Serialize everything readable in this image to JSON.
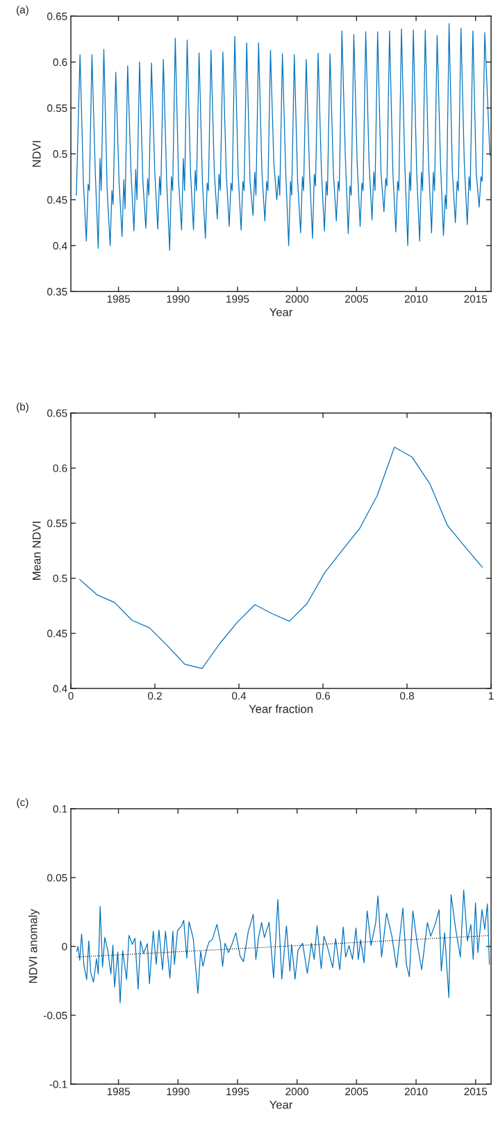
{
  "chart_data": [
    {
      "type": "line",
      "xlabel": "Year",
      "ylabel": "NDVI",
      "annotations": [
        "(a)"
      ],
      "xlim": [
        1981,
        2016.3
      ],
      "xticks": [
        1985,
        1990,
        1995,
        2000,
        2005,
        2010,
        2015
      ],
      "ylim": [
        0.35,
        0.65
      ],
      "yticks": [
        0.35,
        0.4,
        0.45,
        0.5,
        0.55,
        0.6,
        0.65
      ],
      "grid": false,
      "legend": false,
      "series": [
        {
          "color": "#0072bd",
          "line_style": "solid",
          "x": [
            1981.46,
            1981.77,
            1982.05,
            1982.3,
            1982.45,
            1982.55,
            1982.77,
            1983.05,
            1983.3,
            1983.45,
            1983.55,
            1983.77,
            1984.05,
            1984.3,
            1984.45,
            1984.55,
            1984.77,
            1985.05,
            1985.3,
            1985.45,
            1985.55,
            1985.77,
            1986.05,
            1986.3,
            1986.45,
            1986.55,
            1986.77,
            1987.05,
            1987.3,
            1987.45,
            1987.55,
            1987.77,
            1988.05,
            1988.3,
            1988.45,
            1988.55,
            1988.77,
            1989.05,
            1989.3,
            1989.45,
            1989.55,
            1989.77,
            1990.05,
            1990.3,
            1990.45,
            1990.55,
            1990.77,
            1991.05,
            1991.3,
            1991.45,
            1991.55,
            1991.77,
            1992.05,
            1992.3,
            1992.45,
            1992.55,
            1992.77,
            1993.05,
            1993.3,
            1993.45,
            1993.55,
            1993.77,
            1994.05,
            1994.3,
            1994.45,
            1994.55,
            1994.77,
            1995.05,
            1995.3,
            1995.45,
            1995.55,
            1995.77,
            1996.05,
            1996.3,
            1996.45,
            1996.55,
            1996.77,
            1997.05,
            1997.3,
            1997.45,
            1997.55,
            1997.77,
            1998.05,
            1998.3,
            1998.45,
            1998.55,
            1998.77,
            1999.05,
            1999.3,
            1999.45,
            1999.55,
            1999.77,
            2000.05,
            2000.3,
            2000.45,
            2000.55,
            2000.77,
            2001.05,
            2001.3,
            2001.45,
            2001.55,
            2001.77,
            2002.05,
            2002.3,
            2002.45,
            2002.55,
            2002.77,
            2003.05,
            2003.3,
            2003.45,
            2003.55,
            2003.77,
            2004.05,
            2004.3,
            2004.45,
            2004.55,
            2004.77,
            2005.05,
            2005.3,
            2005.45,
            2005.55,
            2005.77,
            2006.05,
            2006.3,
            2006.45,
            2006.55,
            2006.77,
            2007.05,
            2007.3,
            2007.45,
            2007.55,
            2007.77,
            2008.05,
            2008.3,
            2008.45,
            2008.55,
            2008.77,
            2009.05,
            2009.3,
            2009.45,
            2009.55,
            2009.77,
            2010.05,
            2010.3,
            2010.45,
            2010.55,
            2010.77,
            2011.05,
            2011.3,
            2011.45,
            2011.55,
            2011.77,
            2012.05,
            2012.3,
            2012.45,
            2012.55,
            2012.77,
            2013.05,
            2013.3,
            2013.45,
            2013.55,
            2013.77,
            2014.05,
            2014.3,
            2014.45,
            2014.55,
            2014.77,
            2015.05,
            2015.3,
            2015.45,
            2015.55,
            2015.77,
            2016.2
          ],
          "values": [
            0.455,
            0.608,
            0.47,
            0.405,
            0.467,
            0.46,
            0.608,
            0.48,
            0.397,
            0.495,
            0.46,
            0.614,
            0.46,
            0.4,
            0.46,
            0.445,
            0.589,
            0.47,
            0.41,
            0.472,
            0.44,
            0.596,
            0.48,
            0.416,
            0.483,
            0.45,
            0.6,
            0.47,
            0.419,
            0.473,
            0.455,
            0.599,
            0.48,
            0.418,
            0.475,
            0.455,
            0.603,
            0.47,
            0.395,
            0.475,
            0.46,
            0.626,
            0.47,
            0.417,
            0.495,
            0.46,
            0.624,
            0.48,
            0.417,
            0.482,
            0.46,
            0.61,
            0.47,
            0.408,
            0.468,
            0.46,
            0.613,
            0.48,
            0.429,
            0.478,
            0.46,
            0.611,
            0.48,
            0.421,
            0.468,
            0.46,
            0.628,
            0.48,
            0.417,
            0.47,
            0.46,
            0.621,
            0.47,
            0.433,
            0.48,
            0.455,
            0.621,
            0.48,
            0.427,
            0.47,
            0.46,
            0.613,
            0.49,
            0.45,
            0.476,
            0.455,
            0.609,
            0.48,
            0.4,
            0.47,
            0.455,
            0.608,
            0.47,
            0.414,
            0.475,
            0.46,
            0.603,
            0.48,
            0.408,
            0.478,
            0.465,
            0.61,
            0.48,
            0.416,
            0.47,
            0.455,
            0.609,
            0.48,
            0.427,
            0.47,
            0.46,
            0.634,
            0.5,
            0.413,
            0.465,
            0.455,
            0.63,
            0.49,
            0.421,
            0.468,
            0.46,
            0.633,
            0.49,
            0.428,
            0.48,
            0.46,
            0.633,
            0.48,
            0.437,
            0.473,
            0.465,
            0.634,
            0.48,
            0.415,
            0.47,
            0.46,
            0.636,
            0.49,
            0.4,
            0.48,
            0.46,
            0.635,
            0.48,
            0.405,
            0.48,
            0.46,
            0.635,
            0.49,
            0.414,
            0.48,
            0.46,
            0.629,
            0.49,
            0.411,
            0.455,
            0.44,
            0.642,
            0.48,
            0.425,
            0.47,
            0.46,
            0.637,
            0.49,
            0.423,
            0.475,
            0.46,
            0.634,
            0.48,
            0.442,
            0.475,
            0.47,
            0.632,
            0.498
          ]
        }
      ]
    },
    {
      "type": "line",
      "xlabel": "Year fraction",
      "ylabel": "Mean NDVI",
      "annotations": [
        "(b)"
      ],
      "xlim": [
        0,
        1
      ],
      "xticks": [
        0,
        0.2,
        0.4,
        0.6,
        0.8,
        1
      ],
      "ylim": [
        0.4,
        0.65
      ],
      "yticks": [
        0.4,
        0.45,
        0.5,
        0.55,
        0.6,
        0.65
      ],
      "grid": false,
      "legend": false,
      "series": [
        {
          "color": "#0072bd",
          "line_style": "solid",
          "x": [
            0.021,
            0.062,
            0.104,
            0.145,
            0.187,
            0.229,
            0.271,
            0.312,
            0.355,
            0.396,
            0.438,
            0.478,
            0.52,
            0.562,
            0.604,
            0.645,
            0.687,
            0.729,
            0.77,
            0.812,
            0.854,
            0.896,
            0.937,
            0.979
          ],
          "values": [
            0.499,
            0.485,
            0.478,
            0.462,
            0.455,
            0.439,
            0.422,
            0.418,
            0.441,
            0.46,
            0.476,
            0.468,
            0.461,
            0.477,
            0.505,
            0.525,
            0.545,
            0.575,
            0.619,
            0.61,
            0.586,
            0.548,
            0.529,
            0.51
          ]
        }
      ]
    },
    {
      "type": "line",
      "xlabel": "Year",
      "ylabel": "NDVI anomaly",
      "annotations": [
        "(c)"
      ],
      "xlim": [
        1981,
        2016.3
      ],
      "xticks": [
        1985,
        1990,
        1995,
        2000,
        2005,
        2010,
        2015
      ],
      "ylim": [
        -0.1,
        0.1
      ],
      "yticks": [
        -0.1,
        -0.05,
        0,
        0.05,
        0.1
      ],
      "grid": false,
      "legend": false,
      "series": [
        {
          "color": "#0072bd",
          "line_style": "solid",
          "x": [
            1981.5,
            1981.6,
            1981.75,
            1981.9,
            1982.1,
            1982.33,
            1982.5,
            1982.67,
            1982.9,
            1983.15,
            1983.3,
            1983.46,
            1983.66,
            1983.85,
            1984.1,
            1984.36,
            1984.53,
            1984.67,
            1984.94,
            1985.14,
            1985.35,
            1985.68,
            1985.88,
            1986.17,
            1986.38,
            1986.65,
            1986.85,
            1987.1,
            1987.43,
            1987.6,
            1987.92,
            1988.17,
            1988.4,
            1988.7,
            1988.95,
            1989.32,
            1989.57,
            1989.7,
            1989.96,
            1990.31,
            1990.48,
            1990.74,
            1990.93,
            1991.28,
            1991.67,
            1991.9,
            1992.1,
            1992.39,
            1992.59,
            1992.88,
            1993.27,
            1993.56,
            1993.75,
            1993.95,
            1994.24,
            1994.53,
            1994.86,
            1995.21,
            1995.5,
            1995.9,
            1996.32,
            1996.54,
            1996.77,
            1997.02,
            1997.26,
            1997.65,
            1998.03,
            1998.39,
            1998.72,
            1999.11,
            1999.4,
            1999.54,
            1999.83,
            2000.08,
            2000.47,
            2000.86,
            2001.21,
            2001.44,
            2001.68,
            2002.03,
            2002.26,
            2002.52,
            2003.0,
            2003.24,
            2003.59,
            2003.88,
            2004.08,
            2004.37,
            2004.66,
            2004.95,
            2005.15,
            2005.34,
            2005.63,
            2005.89,
            2006.22,
            2006.61,
            2006.8,
            2007.1,
            2007.52,
            2007.97,
            2008.36,
            2008.89,
            2009.18,
            2009.43,
            2009.73,
            2010.12,
            2010.47,
            2010.95,
            2011.23,
            2011.62,
            2011.93,
            2012.12,
            2012.4,
            2012.75,
            2012.94,
            2013.33,
            2013.72,
            2014.0,
            2014.31,
            2014.6,
            2014.8,
            2014.99,
            2015.19,
            2015.54,
            2015.77,
            2015.99,
            2016.16
          ],
          "values": [
            -0.0035,
            0.0,
            -0.01,
            0.009,
            -0.014,
            -0.024,
            0.004,
            -0.019,
            -0.026,
            -0.009,
            -0.02,
            0.029,
            -0.015,
            0.0065,
            -0.003,
            -0.02,
            0.001,
            -0.0295,
            -0.004,
            -0.041,
            -0.003,
            -0.024,
            0.008,
            0.0015,
            0.006,
            -0.031,
            0.004,
            -0.005,
            0.002,
            -0.027,
            0.011,
            -0.013,
            0.012,
            -0.017,
            0.011,
            -0.023,
            0.011,
            -0.013,
            0.0115,
            0.015,
            0.019,
            -0.0085,
            0.018,
            0.0057,
            -0.034,
            -0.0035,
            -0.0145,
            -0.0027,
            0.003,
            0.005,
            0.016,
            0.003,
            -0.0145,
            0.0023,
            -0.0044,
            0.0015,
            0.0099,
            -0.0069,
            -0.011,
            0.0107,
            0.0233,
            -0.0094,
            0.0065,
            0.0174,
            0.0065,
            0.0174,
            -0.0228,
            0.034,
            -0.0237,
            0.015,
            -0.0178,
            0.0015,
            -0.0237,
            -0.0027,
            0.0023,
            -0.0195,
            0.0023,
            -0.0094,
            0.015,
            -0.0161,
            0.0074,
            0.0007,
            -0.0153,
            0.0057,
            -0.0169,
            0.0141,
            -0.0077,
            0.0007,
            -0.0094,
            0.0133,
            -0.0094,
            0.0049,
            -0.0119,
            0.0258,
            0.0007,
            0.0174,
            0.0367,
            -0.0077,
            0.0242,
            0.0074,
            -0.0153,
            0.0279,
            -0.0128,
            -0.022,
            0.0258,
            0.0007,
            -0.0169,
            0.0174,
            0.0074,
            0.0166,
            0.0267,
            -0.0178,
            0.0099,
            -0.0371,
            0.0376,
            0.0124,
            -0.0077,
            0.0409,
            0.004,
            0.0158,
            -0.0094,
            0.0317,
            -0.0044,
            0.0267,
            0.0124,
            0.0309,
            -0.0128
          ]
        },
        {
          "type": "line",
          "color": "#000000",
          "line_style": "dotted",
          "x": [
            1981.5,
            2016.16
          ],
          "values": [
            -0.0077,
            0.0079
          ]
        }
      ]
    }
  ]
}
